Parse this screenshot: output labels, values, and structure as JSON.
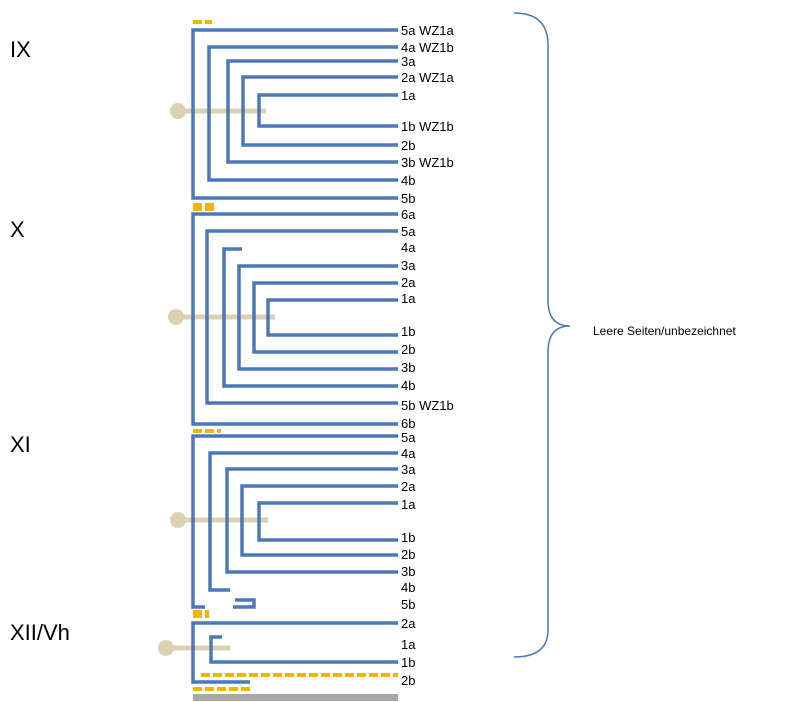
{
  "groups": [
    {
      "id": "ix",
      "name": "IX",
      "leaves": [
        "5a WZ1a",
        "4a WZ1b",
        "3a",
        "2a WZ1a",
        "1a",
        "1b WZ1b",
        "2b",
        "3b WZ1b",
        "4b",
        "5b"
      ]
    },
    {
      "id": "x",
      "name": "X",
      "leaves": [
        "6a",
        "5a",
        "4a",
        "3a",
        "2a",
        "1a",
        "1b",
        "2b",
        "3b",
        "4b",
        "5b WZ1b",
        "6b"
      ]
    },
    {
      "id": "xi",
      "name": "XI",
      "leaves": [
        "5a",
        "4a",
        "3a",
        "2a",
        "1a",
        "1b",
        "2b",
        "3b",
        "4b",
        "5b"
      ]
    },
    {
      "id": "xii",
      "name": "XII/Vh",
      "leaves": [
        "2a",
        "1a",
        "1b",
        "2b"
      ]
    }
  ],
  "brace_label": "Leere Seiten/unbezeichnet",
  "colors": {
    "folio": "#4a78b8",
    "thread": "#ddd1b4",
    "marker": "#f5b400",
    "cover": "#a8a8a8",
    "text": "#000000"
  }
}
